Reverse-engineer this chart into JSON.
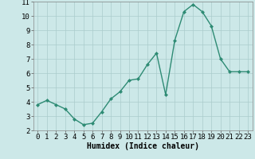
{
  "x": [
    0,
    1,
    2,
    3,
    4,
    5,
    6,
    7,
    8,
    9,
    10,
    11,
    12,
    13,
    14,
    15,
    16,
    17,
    18,
    19,
    20,
    21,
    22,
    23
  ],
  "y": [
    3.8,
    4.1,
    3.8,
    3.5,
    2.8,
    2.4,
    2.5,
    3.3,
    4.2,
    4.7,
    5.5,
    5.6,
    6.6,
    7.4,
    4.5,
    8.3,
    10.3,
    10.8,
    10.3,
    9.3,
    7.0,
    6.1,
    6.1,
    6.1
  ],
  "line_color": "#2e8b74",
  "marker": "D",
  "marker_size": 2.0,
  "line_width": 1.0,
  "bg_color": "#cce8e8",
  "grid_color": "#aacccc",
  "xlabel": "Humidex (Indice chaleur)",
  "xlabel_fontsize": 7,
  "tick_fontsize": 6.5,
  "ylim": [
    2,
    11
  ],
  "xlim": [
    -0.5,
    23.5
  ],
  "yticks": [
    2,
    3,
    4,
    5,
    6,
    7,
    8,
    9,
    10,
    11
  ],
  "xticks": [
    0,
    1,
    2,
    3,
    4,
    5,
    6,
    7,
    8,
    9,
    10,
    11,
    12,
    13,
    14,
    15,
    16,
    17,
    18,
    19,
    20,
    21,
    22,
    23
  ]
}
